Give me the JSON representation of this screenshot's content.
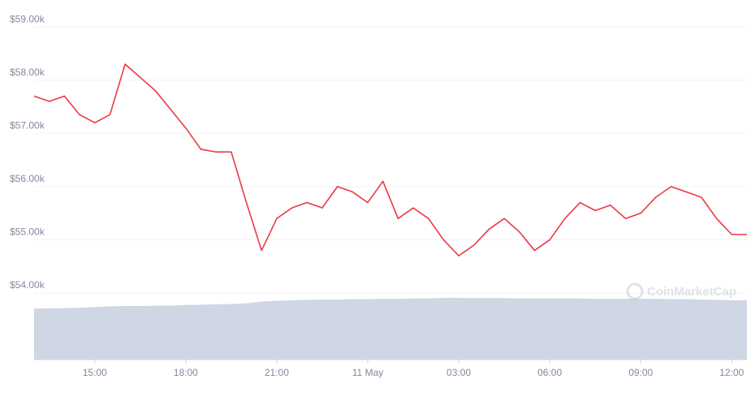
{
  "chart_data": {
    "type": "line",
    "categories": [
      null,
      null,
      null,
      null,
      "15:00",
      null,
      null,
      null,
      null,
      null,
      "18:00",
      null,
      null,
      null,
      null,
      null,
      "21:00",
      null,
      null,
      null,
      null,
      null,
      "11 May",
      null,
      null,
      null,
      null,
      null,
      "03:00",
      null,
      null,
      null,
      null,
      null,
      "06:00",
      null,
      null,
      null,
      null,
      null,
      "09:00",
      null,
      null,
      null,
      null,
      null,
      "12:00",
      null
    ],
    "series": [
      {
        "color": "#ea3943",
        "values": [
          57700,
          57600,
          57700,
          57350,
          57200,
          57350,
          58300,
          58050,
          57800,
          57450,
          57100,
          56700,
          56650,
          56650,
          55700,
          54800,
          55400,
          55600,
          55700,
          55600,
          56000,
          55900,
          55700,
          56100,
          55400,
          55600,
          55400,
          55000,
          54700,
          54900,
          55200,
          55400,
          55150,
          54800,
          55000,
          55400,
          55700,
          55550,
          55650,
          55400,
          55500,
          55800,
          56000,
          55900,
          55800,
          55400,
          55100,
          55100
        ]
      }
    ],
    "volume": {
      "color": "#cfd6e4",
      "axis": "y2",
      "values": [
        14.9,
        14.9,
        15.0,
        15.1,
        15.3,
        15.5,
        15.6,
        15.6,
        15.7,
        15.7,
        15.9,
        16.0,
        16.1,
        16.2,
        16.4,
        16.9,
        17.1,
        17.3,
        17.4,
        17.5,
        17.5,
        17.6,
        17.6,
        17.7,
        17.7,
        17.8,
        17.8,
        18.0,
        18.0,
        17.9,
        17.9,
        17.9,
        17.8,
        17.8,
        17.8,
        17.8,
        17.8,
        17.7,
        17.7,
        17.7,
        17.7,
        17.7,
        17.6,
        17.6,
        17.5,
        17.4,
        17.3,
        17.3
      ]
    },
    "y2lim": [
      0,
      100
    ],
    "ylim": [
      52750,
      59200
    ],
    "yticks": [
      {
        "value": 54000,
        "label": "$54.00k"
      },
      {
        "value": 55000,
        "label": "$55.00k"
      },
      {
        "value": 56000,
        "label": "$56.00k"
      },
      {
        "value": 57000,
        "label": "$57.00k"
      },
      {
        "value": 58000,
        "label": "$58.00k"
      },
      {
        "value": 59000,
        "label": "$59.00k"
      }
    ],
    "grid": true,
    "watermark": "CoinMarketCap"
  }
}
